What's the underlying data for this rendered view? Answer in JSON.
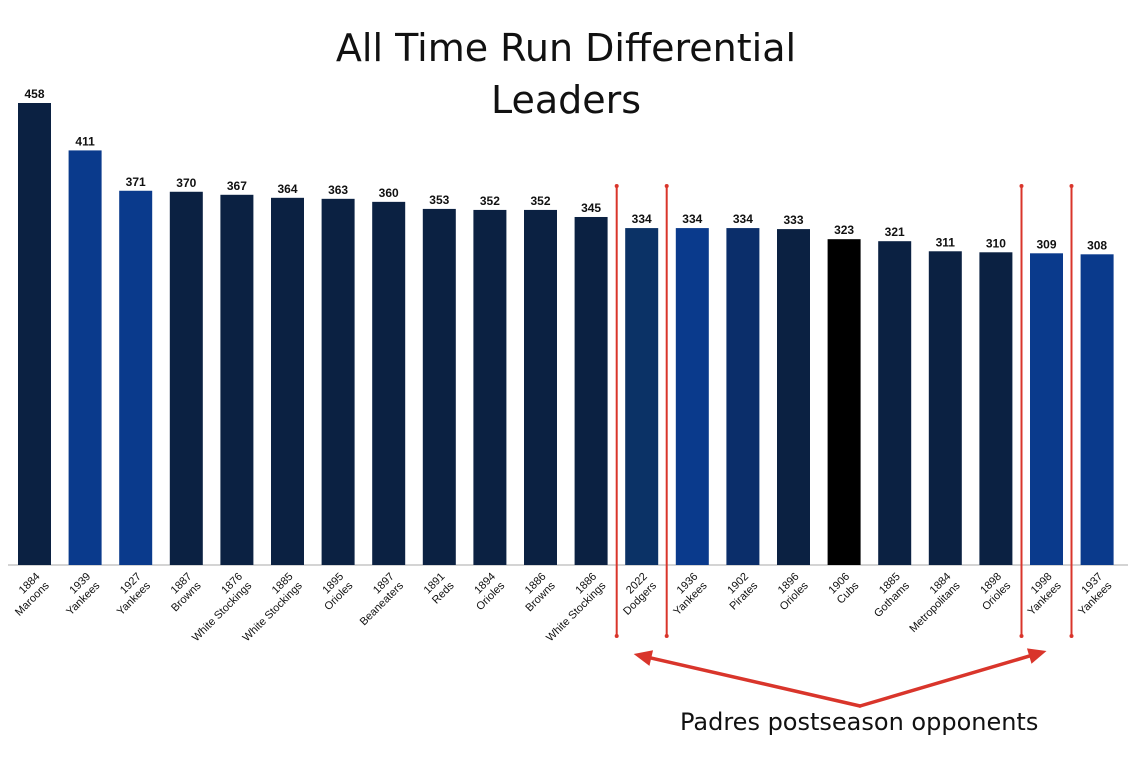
{
  "chart_data": {
    "type": "bar",
    "title_lines": [
      "All Time Run Differential",
      "Leaders"
    ],
    "categories": [
      {
        "year": "1884",
        "team": "Maroons"
      },
      {
        "year": "1939",
        "team": "Yankees"
      },
      {
        "year": "1927",
        "team": "Yankees"
      },
      {
        "year": "1887",
        "team": "Browns"
      },
      {
        "year": "1876",
        "team": "White Stockings"
      },
      {
        "year": "1885",
        "team": "White Stockings"
      },
      {
        "year": "1895",
        "team": "Orioles"
      },
      {
        "year": "1897",
        "team": "Beaneaters"
      },
      {
        "year": "1891",
        "team": "Reds"
      },
      {
        "year": "1894",
        "team": "Orioles"
      },
      {
        "year": "1886",
        "team": "Browns"
      },
      {
        "year": "1886",
        "team": "White Stockings"
      },
      {
        "year": "2022",
        "team": "Dodgers"
      },
      {
        "year": "1936",
        "team": "Yankees"
      },
      {
        "year": "1902",
        "team": "Pirates"
      },
      {
        "year": "1896",
        "team": "Orioles"
      },
      {
        "year": "1906",
        "team": "Cubs"
      },
      {
        "year": "1885",
        "team": "Gothams"
      },
      {
        "year": "1884",
        "team": "Metropolitans"
      },
      {
        "year": "1898",
        "team": "Orioles"
      },
      {
        "year": "1998",
        "team": "Yankees"
      },
      {
        "year": "1937",
        "team": "Yankees"
      }
    ],
    "values": [
      458,
      411,
      371,
      370,
      367,
      364,
      363,
      360,
      353,
      352,
      352,
      345,
      334,
      334,
      334,
      333,
      323,
      321,
      311,
      310,
      309,
      308
    ],
    "bar_colors": [
      "#0b2142",
      "#0a3a8c",
      "#0a3a8c",
      "#0b2142",
      "#0b2142",
      "#0b2142",
      "#0b2142",
      "#0b2142",
      "#0b2142",
      "#0b2142",
      "#0b2142",
      "#0b2142",
      "#0b3266",
      "#0a3a8c",
      "#0b2e6a",
      "#0b2142",
      "#000000",
      "#0b2142",
      "#0b2142",
      "#0b2142",
      "#0a3a8c",
      "#0a3a8c"
    ],
    "ylim": [
      0,
      458
    ],
    "grid": false,
    "highlighted_bars": [
      12,
      20
    ],
    "annotation": {
      "text": "Padres postseason opponents",
      "bracket_color": "#d9352b"
    }
  }
}
